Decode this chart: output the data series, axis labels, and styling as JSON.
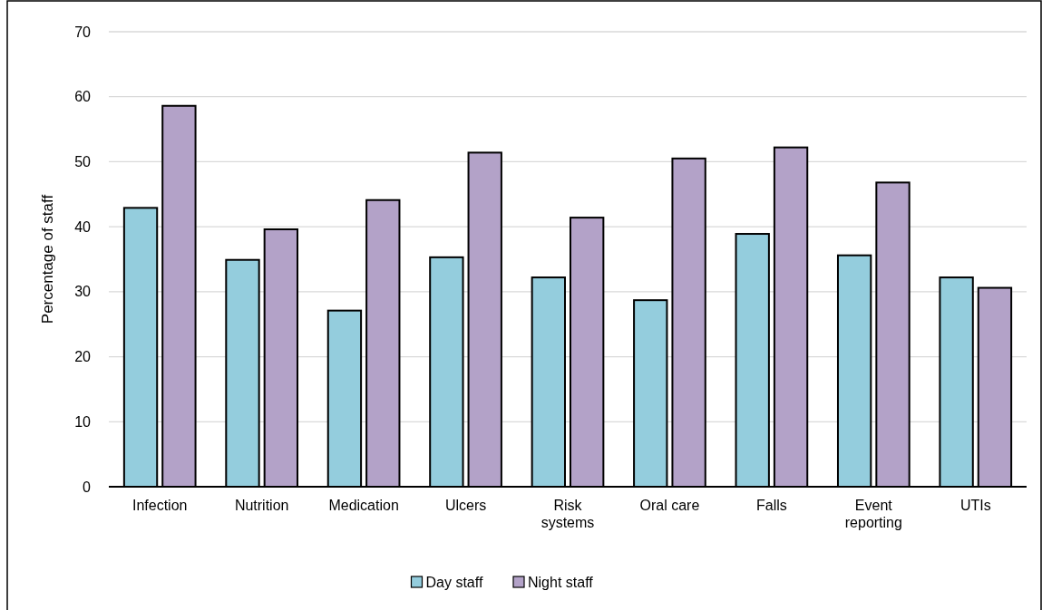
{
  "chart_data": {
    "type": "bar",
    "ylabel": "Percentage of staff",
    "categories": [
      "Infection",
      "Nutrition",
      "Medication",
      "Ulcers",
      "Risk systems",
      "Oral care",
      "Falls",
      "Event reporting",
      "UTIs"
    ],
    "series": [
      {
        "name": "Day staff",
        "color": "#94cddd",
        "values": [
          42.9,
          34.9,
          27.1,
          35.3,
          32.2,
          28.7,
          38.9,
          35.6,
          32.2
        ]
      },
      {
        "name": "Night staff",
        "color": "#b3a2c8",
        "values": [
          58.6,
          39.6,
          44.1,
          51.4,
          41.4,
          50.5,
          52.2,
          46.8,
          30.6
        ]
      }
    ],
    "ylim": [
      0,
      70
    ],
    "yticks": [
      0,
      10,
      20,
      30,
      40,
      50,
      60,
      70
    ],
    "grid": "y",
    "legend": "bottom"
  }
}
